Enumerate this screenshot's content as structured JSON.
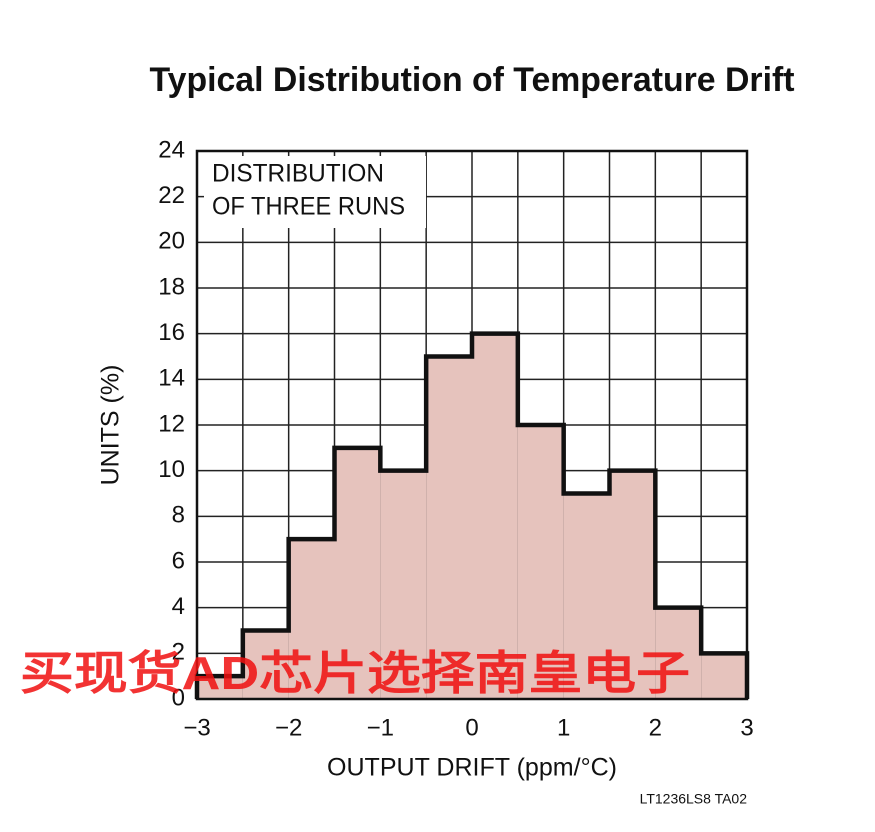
{
  "chart_data": {
    "type": "histogram",
    "title": "Typical Distribution of Temperature Drift",
    "xlabel": "OUTPUT DRIFT (ppm/°C)",
    "ylabel": "UNITS (%)",
    "annotation": [
      "DISTRIBUTION",
      "OF THREE RUNS"
    ],
    "footnote": "LT1236LS8 TA02",
    "watermark": "买现货AD芯片选择南皇电子",
    "bins": [
      -3,
      -2.5,
      -2,
      -1.5,
      -1,
      -0.5,
      0,
      0.5,
      1,
      1.5,
      2,
      2.5,
      3
    ],
    "values": [
      1,
      3,
      7,
      11,
      10,
      15,
      16,
      12,
      9,
      10,
      4,
      2
    ],
    "color": "#e6c3bd",
    "xlim": [
      -3,
      3
    ],
    "ylim": [
      0,
      24
    ],
    "xticks": [
      {
        "value": -3,
        "label": "−3"
      },
      {
        "value": -2,
        "label": "−2"
      },
      {
        "value": -1,
        "label": "−1"
      },
      0,
      1,
      2,
      3
    ],
    "yticks": [
      0,
      2,
      4,
      6,
      8,
      10,
      12,
      14,
      16,
      18,
      20,
      22,
      24
    ],
    "grid": true
  }
}
